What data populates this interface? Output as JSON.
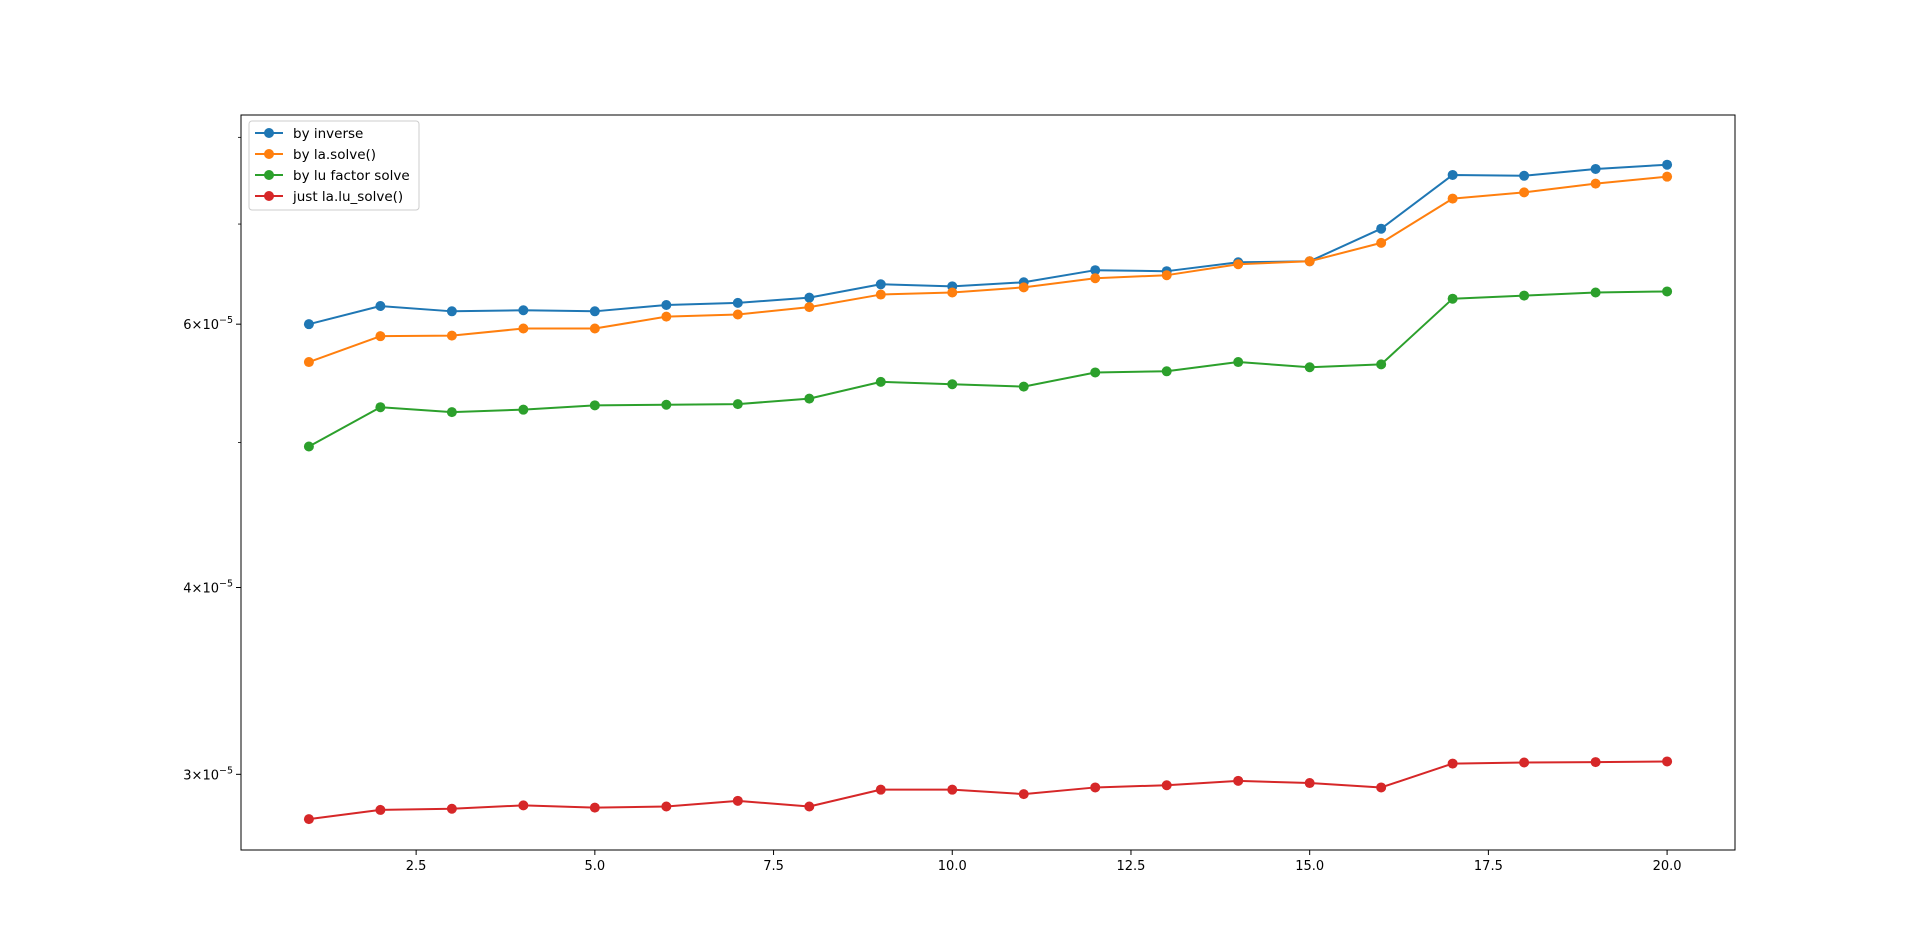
{
  "chart_data": {
    "type": "line",
    "title": "",
    "xlabel": "",
    "ylabel": "",
    "yscale": "log",
    "xlim": [
      0.05,
      20.95
    ],
    "ylim": [
      2.67e-05,
      8.28e-05
    ],
    "grid": false,
    "legend_position": "top-left",
    "marker": "circle",
    "x": [
      1,
      2,
      3,
      4,
      5,
      6,
      7,
      8,
      9,
      10,
      11,
      12,
      13,
      14,
      15,
      16,
      17,
      18,
      19,
      20
    ],
    "x_ticks": [
      {
        "value": 2.5,
        "label": "2.5"
      },
      {
        "value": 5.0,
        "label": "5.0"
      },
      {
        "value": 7.5,
        "label": "7.5"
      },
      {
        "value": 10.0,
        "label": "10.0"
      },
      {
        "value": 12.5,
        "label": "12.5"
      },
      {
        "value": 15.0,
        "label": "15.0"
      },
      {
        "value": 17.5,
        "label": "17.5"
      },
      {
        "value": 20.0,
        "label": "20.0"
      }
    ],
    "y_ticks_major": [
      {
        "value": 3e-05,
        "mantissa": "3",
        "exponent": "−5"
      },
      {
        "value": 4e-05,
        "mantissa": "4",
        "exponent": "−5"
      },
      {
        "value": 6e-05,
        "mantissa": "6",
        "exponent": "−5"
      }
    ],
    "y_ticks_minor": [
      7e-05,
      8e-05,
      5e-05
    ],
    "series": [
      {
        "name": "by inverse",
        "color": "#1f77b4",
        "values": [
          6e-05,
          6.17e-05,
          6.12e-05,
          6.13e-05,
          6.12e-05,
          6.18e-05,
          6.2e-05,
          6.25e-05,
          6.38e-05,
          6.36e-05,
          6.4e-05,
          6.52e-05,
          6.51e-05,
          6.6e-05,
          6.61e-05,
          6.95e-05,
          7.55e-05,
          7.54e-05,
          7.62e-05,
          7.67e-05
        ]
      },
      {
        "name": "by la.solve()",
        "color": "#ff7f0e",
        "values": [
          5.66e-05,
          5.89e-05,
          5.895e-05,
          5.96e-05,
          5.96e-05,
          6.07e-05,
          6.09e-05,
          6.16e-05,
          6.28e-05,
          6.3e-05,
          6.35e-05,
          6.44e-05,
          6.47e-05,
          6.58e-05,
          6.61e-05,
          6.8e-05,
          7.28e-05,
          7.35e-05,
          7.45e-05,
          7.53e-05
        ]
      },
      {
        "name": "by lu factor solve",
        "color": "#2ca02c",
        "values": [
          4.97e-05,
          5.28e-05,
          5.24e-05,
          5.26e-05,
          5.295e-05,
          5.3e-05,
          5.305e-05,
          5.35e-05,
          5.49e-05,
          5.47e-05,
          5.45e-05,
          5.57e-05,
          5.58e-05,
          5.66e-05,
          5.615e-05,
          5.64e-05,
          6.24e-05,
          6.27e-05,
          6.3e-05,
          6.31e-05
        ]
      },
      {
        "name": "just la.lu_solve()",
        "color": "#d62728",
        "values": [
          2.8e-05,
          2.84e-05,
          2.845e-05,
          2.86e-05,
          2.85e-05,
          2.855e-05,
          2.88e-05,
          2.855e-05,
          2.93e-05,
          2.93e-05,
          2.91e-05,
          2.94e-05,
          2.95e-05,
          2.97e-05,
          2.96e-05,
          2.94e-05,
          3.05e-05,
          3.055e-05,
          3.057e-05,
          3.06e-05
        ]
      }
    ]
  }
}
